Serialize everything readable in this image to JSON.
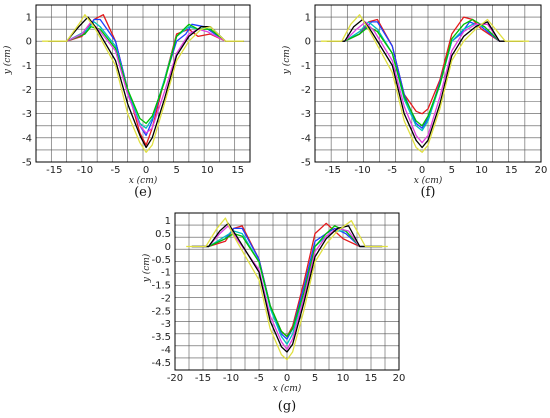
{
  "chart_data": [
    {
      "panel_label": "(e)",
      "type": "line",
      "xlabel": "x (cm)",
      "ylabel": "y (cm)",
      "xlim": [
        -18,
        17
      ],
      "ylim": [
        -5,
        1.5
      ],
      "xticks": [
        -15,
        -10,
        -5,
        0,
        5,
        10,
        15
      ],
      "yticks": [
        1,
        0,
        -1,
        -2,
        -3,
        -4,
        -5
      ],
      "grid": true,
      "series": [
        {
          "color": "#e41a1c",
          "x": [
            -16,
            -13,
            -10.5,
            -8.5,
            -7,
            -5,
            -3,
            -1,
            0,
            1,
            3,
            5,
            7,
            8.5,
            10.5,
            13,
            16
          ],
          "y": [
            0,
            0,
            0.2,
            0.9,
            1.1,
            0,
            -2,
            -3.8,
            -4.3,
            -3.6,
            -1.6,
            0.3,
            0.5,
            0.2,
            0.3,
            0,
            0
          ]
        },
        {
          "color": "#1f3fff",
          "x": [
            -16,
            -13,
            -10,
            -8.5,
            -7.5,
            -5,
            -3,
            -1,
            0,
            1,
            3,
            5,
            6.5,
            7.5,
            9.5,
            13,
            16
          ],
          "y": [
            0,
            0,
            0.3,
            0.9,
            0.9,
            0,
            -2,
            -3.5,
            -3.9,
            -3.3,
            -1.6,
            0,
            0.3,
            0.7,
            0.6,
            0,
            0
          ]
        },
        {
          "color": "#00bfbf",
          "x": [
            -16,
            -13,
            -10,
            -8.5,
            -7.5,
            -5,
            -3,
            -1,
            0,
            1,
            3,
            5,
            7,
            8.5,
            10.5,
            13,
            16
          ],
          "y": [
            0,
            0,
            0.4,
            0.8,
            0.6,
            -0.2,
            -2,
            -3.4,
            -3.6,
            -3.2,
            -1.6,
            0.2,
            0.6,
            0.5,
            0.6,
            0,
            0
          ]
        },
        {
          "color": "#00c000",
          "x": [
            -16,
            -13,
            -10,
            -9,
            -7.5,
            -5,
            -3,
            -1,
            0,
            1,
            3,
            5,
            7,
            8.5,
            10.5,
            13,
            16
          ],
          "y": [
            0,
            0,
            0.3,
            0.6,
            0.5,
            -0.3,
            -2,
            -3.2,
            -3.4,
            -3.1,
            -1.7,
            0.2,
            0.7,
            0.5,
            0.5,
            0,
            0
          ]
        },
        {
          "color": "#e040e0",
          "x": [
            -16,
            -13,
            -10.5,
            -9,
            -7.5,
            -5,
            -3,
            -1,
            0,
            1,
            3,
            5,
            7,
            8.5,
            10,
            13,
            16
          ],
          "y": [
            0,
            0,
            0.3,
            0.8,
            0.4,
            -0.4,
            -2.2,
            -3.5,
            -3.8,
            -3.6,
            -2.1,
            -0.5,
            0.3,
            0.5,
            0.4,
            0,
            0
          ]
        },
        {
          "color": "#000000",
          "x": [
            -16,
            -13,
            -11,
            -9.5,
            -8,
            -5,
            -3,
            -1,
            0,
            1,
            3,
            5,
            7,
            9,
            10.5,
            13,
            16
          ],
          "y": [
            0,
            0,
            0.6,
            1.0,
            0.5,
            -0.8,
            -2.6,
            -3.9,
            -4.4,
            -4.0,
            -2.4,
            -0.6,
            0.2,
            0.6,
            0.6,
            0,
            0
          ]
        },
        {
          "color": "#e0e040",
          "x": [
            -17,
            -13,
            -11,
            -10,
            -8.5,
            -5,
            -3,
            -1,
            0,
            1,
            3,
            5,
            7,
            9,
            10.5,
            13,
            16
          ],
          "y": [
            0,
            0,
            0.7,
            1.1,
            0.6,
            -1.0,
            -3.0,
            -4.2,
            -4.6,
            -4.3,
            -2.6,
            -0.8,
            0,
            0.5,
            0.6,
            0,
            0
          ]
        }
      ]
    },
    {
      "panel_label": "(f)",
      "type": "line",
      "xlabel": "x (cm)",
      "ylabel": "y (cm)",
      "xlim": [
        -18,
        20
      ],
      "ylim": [
        -5,
        1.5
      ],
      "xticks": [
        -15,
        -10,
        -5,
        0,
        5,
        10,
        15,
        20
      ],
      "yticks": [
        1,
        0,
        -1,
        -2,
        -3,
        -4,
        -5
      ],
      "grid": true,
      "series": [
        {
          "color": "#e41a1c",
          "x": [
            -16,
            -13,
            -10.5,
            -9,
            -7.5,
            -5,
            -3,
            -1,
            0,
            1,
            3,
            5,
            7,
            8.5,
            10,
            13,
            17
          ],
          "y": [
            0,
            0,
            0.3,
            0.8,
            0.9,
            -0.2,
            -2.2,
            -2.9,
            -3.0,
            -2.8,
            -1.6,
            0.3,
            1.0,
            0.9,
            0.5,
            0,
            0
          ]
        },
        {
          "color": "#1f3fff",
          "x": [
            -16,
            -13,
            -10.5,
            -8.5,
            -7.5,
            -5,
            -3,
            -1,
            0,
            1,
            3,
            5,
            6.5,
            8,
            10,
            13,
            17
          ],
          "y": [
            0,
            0,
            0.3,
            0.8,
            0.8,
            -0.2,
            -2.2,
            -3.4,
            -3.6,
            -3.2,
            -1.7,
            0,
            0.3,
            0.8,
            0.6,
            0,
            0
          ]
        },
        {
          "color": "#00bfbf",
          "x": [
            -16,
            -13,
            -10.5,
            -9,
            -7.5,
            -5,
            -3,
            -1,
            0,
            1,
            3,
            5,
            7,
            8.5,
            10.5,
            13,
            17
          ],
          "y": [
            0,
            0,
            0.4,
            0.8,
            0.5,
            -0.5,
            -2.4,
            -3.5,
            -3.7,
            -3.3,
            -1.8,
            0,
            0.5,
            0.7,
            0.6,
            0,
            0
          ]
        },
        {
          "color": "#00c000",
          "x": [
            -16,
            -13,
            -10.5,
            -9,
            -7.5,
            -5,
            -3,
            -1,
            0,
            1,
            3,
            5,
            7,
            8.5,
            10.5,
            13,
            17
          ],
          "y": [
            0,
            0,
            0.3,
            0.6,
            0.4,
            -0.5,
            -2.3,
            -3.3,
            -3.5,
            -3.1,
            -1.8,
            0.1,
            0.7,
            0.9,
            0.6,
            0,
            0
          ]
        },
        {
          "color": "#e040e0",
          "x": [
            -16,
            -13,
            -11,
            -9.5,
            -8,
            -5,
            -3,
            -1,
            0,
            1,
            3,
            5,
            7,
            9,
            11,
            13,
            17
          ],
          "y": [
            0,
            0,
            0.5,
            0.8,
            0.4,
            -0.8,
            -2.7,
            -3.9,
            -4.2,
            -3.9,
            -2.3,
            -0.4,
            0.4,
            0.7,
            0.7,
            0,
            0
          ]
        },
        {
          "color": "#000000",
          "x": [
            -16,
            -13,
            -11.5,
            -10,
            -8.5,
            -5,
            -3,
            -1,
            0,
            1,
            3,
            5,
            7,
            9,
            11,
            13,
            17
          ],
          "y": [
            0,
            0,
            0.6,
            0.9,
            0.4,
            -1.0,
            -3.0,
            -4.1,
            -4.4,
            -4.1,
            -2.6,
            -0.6,
            0.2,
            0.6,
            0.8,
            0,
            0
          ]
        },
        {
          "color": "#e0e040",
          "x": [
            -17,
            -13.5,
            -12,
            -10.5,
            -9,
            -5,
            -3,
            -1,
            0,
            1,
            3,
            5,
            7,
            9,
            11,
            14,
            18
          ],
          "y": [
            0,
            0,
            0.7,
            1.1,
            0.5,
            -1.3,
            -3.3,
            -4.4,
            -4.6,
            -4.3,
            -2.8,
            -0.8,
            0,
            0.5,
            0.9,
            0,
            0
          ]
        }
      ]
    },
    {
      "panel_label": "(g)",
      "type": "line",
      "xlabel": "x (cm)",
      "ylabel": "y (cm)",
      "xlim": [
        -20,
        20
      ],
      "ylim": [
        -4.8,
        1.3
      ],
      "xticks": [
        -20,
        -15,
        -10,
        -5,
        0,
        5,
        10,
        15,
        20
      ],
      "yticks": [
        1,
        0.5,
        0,
        -0.5,
        -1,
        -1.5,
        -2,
        -2.5,
        -3,
        -3.5,
        -4,
        -4.5
      ],
      "grid": true,
      "series": [
        {
          "color": "#e41a1c",
          "x": [
            -17,
            -14,
            -11,
            -9.5,
            -8,
            -5,
            -3,
            -1,
            0,
            1,
            3,
            5,
            7,
            8.5,
            10,
            13,
            17
          ],
          "y": [
            0,
            0,
            0.2,
            0.7,
            0.8,
            -0.5,
            -2.3,
            -3.3,
            -3.5,
            -3.1,
            -1.4,
            0.5,
            0.9,
            0.6,
            0.3,
            0,
            0
          ]
        },
        {
          "color": "#1f3fff",
          "x": [
            -17,
            -14,
            -11,
            -9.5,
            -8,
            -5,
            -3,
            -1,
            0,
            1,
            3,
            5,
            7,
            8.5,
            10.5,
            13,
            17
          ],
          "y": [
            0,
            0,
            0.3,
            0.7,
            0.7,
            -0.5,
            -2.3,
            -3.4,
            -3.6,
            -3.2,
            -1.6,
            0.2,
            0.5,
            0.7,
            0.5,
            0,
            0
          ]
        },
        {
          "color": "#00bfbf",
          "x": [
            -17,
            -14,
            -11,
            -9.5,
            -8,
            -5,
            -3,
            -1,
            0,
            1,
            3,
            5,
            7,
            8.5,
            10.5,
            13,
            17
          ],
          "y": [
            0,
            0,
            0.4,
            0.6,
            0.5,
            -0.6,
            -2.4,
            -3.5,
            -3.8,
            -3.4,
            -1.8,
            0,
            0.4,
            0.6,
            0.6,
            0,
            0
          ]
        },
        {
          "color": "#00c000",
          "x": [
            -17,
            -14,
            -11,
            -9.5,
            -8,
            -5,
            -3,
            -1,
            0,
            1,
            3,
            5,
            7,
            8.5,
            10.5,
            13,
            17
          ],
          "y": [
            0,
            0,
            0.3,
            0.5,
            0.4,
            -0.6,
            -2.3,
            -3.3,
            -3.5,
            -3.2,
            -1.8,
            0,
            0.5,
            0.8,
            0.6,
            0,
            0
          ]
        },
        {
          "color": "#e040e0",
          "x": [
            -17,
            -14,
            -12,
            -10.5,
            -9,
            -5,
            -3,
            -1,
            0,
            1,
            3,
            5,
            7,
            9,
            11,
            13,
            17
          ],
          "y": [
            0,
            0,
            0.5,
            0.8,
            0.3,
            -0.9,
            -2.7,
            -3.7,
            -4.0,
            -3.6,
            -2.0,
            -0.2,
            0.4,
            0.7,
            0.6,
            0,
            0
          ]
        },
        {
          "color": "#000000",
          "x": [
            -17,
            -14,
            -12,
            -10.5,
            -9,
            -5,
            -3,
            -1,
            0,
            1,
            3,
            5,
            7,
            9,
            11,
            13,
            17
          ],
          "y": [
            0,
            0,
            0.6,
            0.9,
            0.4,
            -1.0,
            -2.9,
            -3.9,
            -4.1,
            -3.8,
            -2.2,
            -0.4,
            0.3,
            0.7,
            0.8,
            0,
            0
          ]
        },
        {
          "color": "#e0e040",
          "x": [
            -18,
            -14.5,
            -12.5,
            -11,
            -9.5,
            -5,
            -3,
            -1,
            0,
            1,
            3,
            5,
            7,
            9,
            11.5,
            14,
            18
          ],
          "y": [
            0,
            0,
            0.7,
            1.1,
            0.4,
            -1.3,
            -3.2,
            -4.2,
            -4.4,
            -4.1,
            -2.5,
            -0.6,
            0.1,
            0.6,
            1.0,
            0,
            0
          ]
        }
      ]
    }
  ]
}
